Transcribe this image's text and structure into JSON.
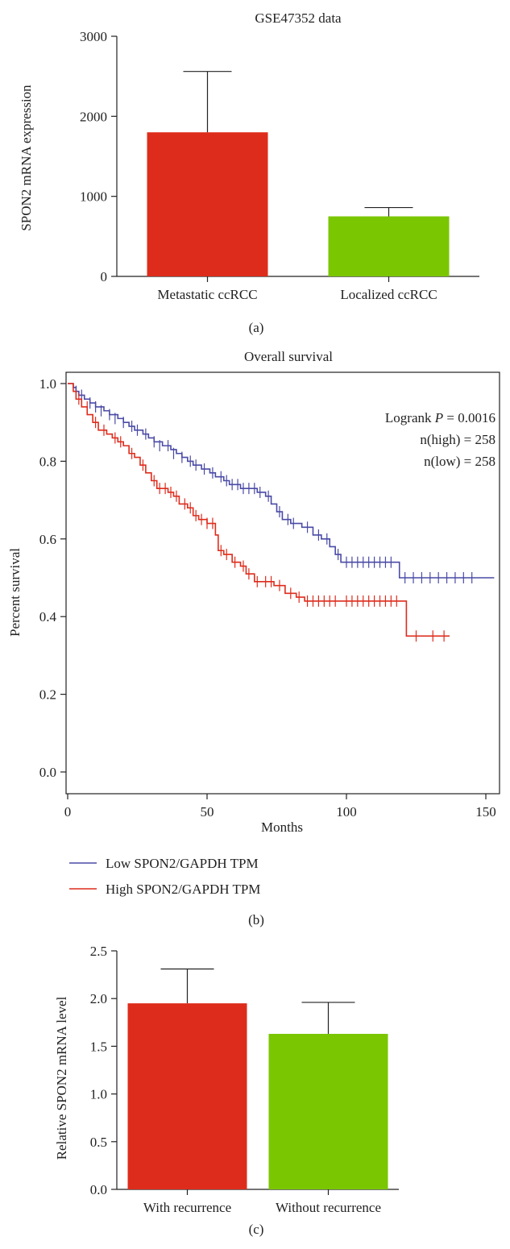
{
  "chart_data": [
    {
      "panel_label": "(a)",
      "type": "bar",
      "title": "GSE47352 data",
      "xlabel": "",
      "ylabel": "SPON2 mRNA expression",
      "ylim": [
        0,
        3000
      ],
      "yticks": [
        "0",
        "1000",
        "2000",
        "3000"
      ],
      "categories": [
        "Metastatic ccRCC",
        "Localized ccRCC"
      ],
      "values": [
        1800,
        750
      ],
      "errors": [
        760,
        110
      ],
      "colors": [
        "#de2c1c",
        "#7ac600"
      ],
      "grid": false
    },
    {
      "panel_label": "(b)",
      "type": "line",
      "subtype": "kaplan-meier",
      "title": "Overall survival",
      "xlabel": "Months",
      "ylabel": "Percent survival",
      "xlim": [
        0,
        155
      ],
      "ylim": [
        0,
        1.0
      ],
      "xticks": [
        "0",
        "50",
        "100",
        "150"
      ],
      "yticks": [
        "0.0",
        "0.2",
        "0.4",
        "0.6",
        "0.8",
        "1.0"
      ],
      "annotation": {
        "logrank_prefix": "Logrank ",
        "logrank_p_symbol": "P",
        "logrank_value": " = 0.0016",
        "n_high": "n(high) = 258",
        "n_low": "n(low) = 258"
      },
      "legend_position": "below",
      "series": [
        {
          "name": "Low SPON2/GAPDH TPM",
          "color": "#4a4aa6",
          "steps": [
            [
              0,
              1.0
            ],
            [
              2,
              0.99
            ],
            [
              3,
              0.98
            ],
            [
              4,
              0.97
            ],
            [
              6,
              0.96
            ],
            [
              8,
              0.95
            ],
            [
              10,
              0.94
            ],
            [
              13,
              0.93
            ],
            [
              15,
              0.92
            ],
            [
              18,
              0.91
            ],
            [
              20,
              0.9
            ],
            [
              22,
              0.89
            ],
            [
              24,
              0.88
            ],
            [
              27,
              0.87
            ],
            [
              29,
              0.86
            ],
            [
              31,
              0.85
            ],
            [
              34,
              0.84
            ],
            [
              37,
              0.83
            ],
            [
              39,
              0.82
            ],
            [
              41,
              0.81
            ],
            [
              43,
              0.8
            ],
            [
              45,
              0.79
            ],
            [
              48,
              0.78
            ],
            [
              51,
              0.77
            ],
            [
              53,
              0.76
            ],
            [
              56,
              0.75
            ],
            [
              58,
              0.74
            ],
            [
              62,
              0.73
            ],
            [
              66,
              0.73
            ],
            [
              68,
              0.72
            ],
            [
              71,
              0.71
            ],
            [
              73,
              0.69
            ],
            [
              75,
              0.67
            ],
            [
              77,
              0.65
            ],
            [
              80,
              0.64
            ],
            [
              84,
              0.63
            ],
            [
              88,
              0.61
            ],
            [
              91,
              0.6
            ],
            [
              94,
              0.58
            ],
            [
              96,
              0.56
            ],
            [
              98,
              0.54
            ],
            [
              119,
              0.5
            ],
            [
              153,
              0.5
            ]
          ],
          "censors": [
            [
              3,
              0.98
            ],
            [
              5,
              0.97
            ],
            [
              8,
              0.95
            ],
            [
              10,
              0.94
            ],
            [
              12,
              0.93
            ],
            [
              15,
              0.92
            ],
            [
              17,
              0.91
            ],
            [
              20,
              0.9
            ],
            [
              23,
              0.89
            ],
            [
              25,
              0.88
            ],
            [
              28,
              0.87
            ],
            [
              31,
              0.85
            ],
            [
              33,
              0.84
            ],
            [
              36,
              0.84
            ],
            [
              38,
              0.82
            ],
            [
              41,
              0.81
            ],
            [
              44,
              0.8
            ],
            [
              46,
              0.79
            ],
            [
              49,
              0.78
            ],
            [
              52,
              0.77
            ],
            [
              55,
              0.76
            ],
            [
              57,
              0.75
            ],
            [
              59,
              0.74
            ],
            [
              61,
              0.74
            ],
            [
              63,
              0.73
            ],
            [
              65,
              0.73
            ],
            [
              67,
              0.73
            ],
            [
              69,
              0.72
            ],
            [
              72,
              0.71
            ],
            [
              76,
              0.67
            ],
            [
              79,
              0.65
            ],
            [
              81,
              0.64
            ],
            [
              86,
              0.63
            ],
            [
              90,
              0.61
            ],
            [
              93,
              0.6
            ],
            [
              97,
              0.56
            ],
            [
              100,
              0.54
            ],
            [
              102,
              0.54
            ],
            [
              104,
              0.54
            ],
            [
              106,
              0.54
            ],
            [
              108,
              0.54
            ],
            [
              110,
              0.54
            ],
            [
              112,
              0.54
            ],
            [
              114,
              0.54
            ],
            [
              116,
              0.54
            ],
            [
              121,
              0.5
            ],
            [
              124,
              0.5
            ],
            [
              127,
              0.5
            ],
            [
              130,
              0.5
            ],
            [
              133,
              0.5
            ],
            [
              136,
              0.5
            ],
            [
              139,
              0.5
            ],
            [
              142,
              0.5
            ],
            [
              145,
              0.5
            ]
          ]
        },
        {
          "name": "High SPON2/GAPDH TPM",
          "color": "#de2c1c",
          "steps": [
            [
              0,
              1.0
            ],
            [
              2,
              0.98
            ],
            [
              3,
              0.96
            ],
            [
              5,
              0.94
            ],
            [
              7,
              0.92
            ],
            [
              9,
              0.9
            ],
            [
              11,
              0.88
            ],
            [
              14,
              0.87
            ],
            [
              16,
              0.86
            ],
            [
              18,
              0.85
            ],
            [
              20,
              0.84
            ],
            [
              22,
              0.82
            ],
            [
              24,
              0.81
            ],
            [
              26,
              0.79
            ],
            [
              28,
              0.77
            ],
            [
              30,
              0.75
            ],
            [
              32,
              0.73
            ],
            [
              36,
              0.72
            ],
            [
              38,
              0.71
            ],
            [
              40,
              0.69
            ],
            [
              43,
              0.68
            ],
            [
              45,
              0.66
            ],
            [
              47,
              0.65
            ],
            [
              50,
              0.64
            ],
            [
              53,
              0.61
            ],
            [
              54,
              0.57
            ],
            [
              56,
              0.56
            ],
            [
              59,
              0.54
            ],
            [
              62,
              0.53
            ],
            [
              64,
              0.51
            ],
            [
              67,
              0.49
            ],
            [
              70,
              0.49
            ],
            [
              74,
              0.48
            ],
            [
              78,
              0.46
            ],
            [
              82,
              0.45
            ],
            [
              85,
              0.44
            ],
            [
              121,
              0.44
            ],
            [
              121.5,
              0.35
            ],
            [
              137,
              0.35
            ]
          ],
          "censors": [
            [
              4,
              0.96
            ],
            [
              7,
              0.94
            ],
            [
              10,
              0.9
            ],
            [
              13,
              0.88
            ],
            [
              17,
              0.86
            ],
            [
              19,
              0.85
            ],
            [
              23,
              0.82
            ],
            [
              27,
              0.79
            ],
            [
              31,
              0.75
            ],
            [
              33,
              0.73
            ],
            [
              35,
              0.73
            ],
            [
              37,
              0.72
            ],
            [
              39,
              0.71
            ],
            [
              42,
              0.69
            ],
            [
              44,
              0.68
            ],
            [
              46,
              0.66
            ],
            [
              48,
              0.65
            ],
            [
              50,
              0.64
            ],
            [
              52,
              0.64
            ],
            [
              55,
              0.57
            ],
            [
              57,
              0.56
            ],
            [
              60,
              0.54
            ],
            [
              63,
              0.53
            ],
            [
              65,
              0.51
            ],
            [
              68,
              0.49
            ],
            [
              71,
              0.49
            ],
            [
              73,
              0.49
            ],
            [
              76,
              0.48
            ],
            [
              80,
              0.46
            ],
            [
              83,
              0.45
            ],
            [
              86,
              0.44
            ],
            [
              88,
              0.44
            ],
            [
              90,
              0.44
            ],
            [
              92,
              0.44
            ],
            [
              94,
              0.44
            ],
            [
              96,
              0.44
            ],
            [
              100,
              0.44
            ],
            [
              102,
              0.44
            ],
            [
              104,
              0.44
            ],
            [
              106,
              0.44
            ],
            [
              108,
              0.44
            ],
            [
              110,
              0.44
            ],
            [
              112,
              0.44
            ],
            [
              114,
              0.44
            ],
            [
              116,
              0.44
            ],
            [
              118,
              0.44
            ],
            [
              125,
              0.35
            ],
            [
              131,
              0.35
            ],
            [
              135,
              0.35
            ]
          ]
        }
      ]
    },
    {
      "panel_label": "(c)",
      "type": "bar",
      "title": "",
      "xlabel": "",
      "ylabel": "Relative SPON2 mRNA level",
      "ylim": [
        0,
        2.5
      ],
      "yticks": [
        "0.0",
        "0.5",
        "1.0",
        "1.5",
        "2.0",
        "2.5"
      ],
      "categories": [
        "With recurrence",
        "Without recurrence"
      ],
      "values": [
        1.95,
        1.63
      ],
      "errors": [
        0.36,
        0.33
      ],
      "colors": [
        "#de2c1c",
        "#7ac600"
      ],
      "grid": false
    }
  ]
}
